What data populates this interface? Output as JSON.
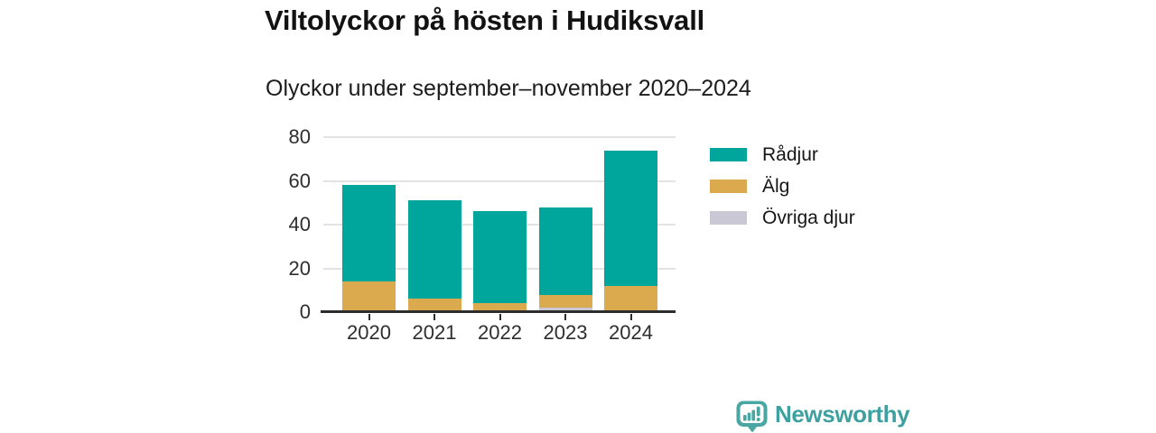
{
  "title": "Viltolyckor på hösten i Hudiksvall",
  "subtitle": "Olyckor under september–november 2020–2024",
  "chart_data": {
    "type": "bar",
    "stacked": true,
    "categories": [
      "2020",
      "2021",
      "2022",
      "2023",
      "2024"
    ],
    "series": [
      {
        "name": "Rådjur",
        "color": "#00a69b",
        "values": [
          44,
          45,
          42,
          40,
          62
        ]
      },
      {
        "name": "Älg",
        "color": "#dba94e",
        "values": [
          14,
          6,
          4,
          6,
          12
        ]
      },
      {
        "name": "Övriga djur",
        "color": "#c9c8d4",
        "values": [
          0,
          0,
          0,
          2,
          0
        ]
      }
    ],
    "stack_order_bottom_to_top": [
      "Övriga djur",
      "Älg",
      "Rådjur"
    ],
    "totals": [
      58,
      51,
      46,
      48,
      74
    ],
    "title": "Viltolyckor på hösten i Hudiksvall",
    "subtitle": "Olyckor under september–november 2020–2024",
    "xlabel": "",
    "ylabel": "",
    "ylim": [
      0,
      80
    ],
    "yticks": [
      0,
      20,
      40,
      60,
      80
    ],
    "grid": "horizontal",
    "legend_position": "right"
  },
  "colors": {
    "grid": "#e3e3e3",
    "axis": "#2d2d2d",
    "brand": "#3fa0a0",
    "brand_icon": "#4aa6a2"
  },
  "branding": {
    "name": "Newsworthy"
  }
}
